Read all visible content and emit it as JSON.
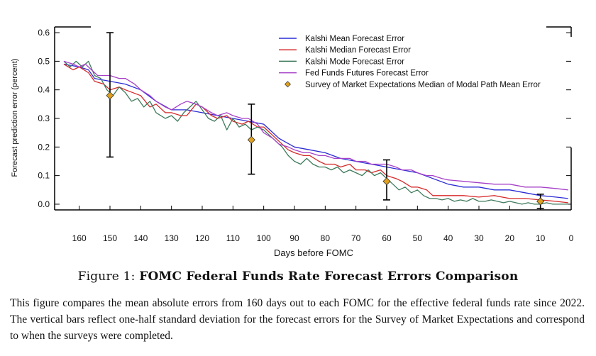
{
  "chart_data": {
    "type": "line",
    "ylabel": "Forecast prediction error (percent)",
    "xlabel": "Days before FOMC",
    "xlim": [
      168,
      0
    ],
    "ylim": [
      -0.02,
      0.62
    ],
    "xticks": [
      160,
      150,
      140,
      130,
      120,
      110,
      100,
      90,
      80,
      70,
      60,
      50,
      40,
      30,
      20,
      10,
      0
    ],
    "yticks": [
      0.0,
      0.1,
      0.2,
      0.3,
      0.4,
      0.5,
      0.6
    ],
    "ytick_labels": [
      "0.0",
      "0.1",
      "0.2",
      "0.3",
      "0.4",
      "0.5",
      "0.6"
    ],
    "legend_position": "top-right",
    "grid": false,
    "series": [
      {
        "name": "Kalshi Mean Forecast Error",
        "color": "#2b2bd6",
        "points": [
          [
            165,
            0.49
          ],
          [
            160,
            0.48
          ],
          [
            157,
            0.47
          ],
          [
            155,
            0.44
          ],
          [
            150,
            0.43
          ],
          [
            145,
            0.42
          ],
          [
            140,
            0.4
          ],
          [
            135,
            0.36
          ],
          [
            130,
            0.33
          ],
          [
            125,
            0.33
          ],
          [
            120,
            0.32
          ],
          [
            115,
            0.31
          ],
          [
            110,
            0.3
          ],
          [
            105,
            0.29
          ],
          [
            100,
            0.28
          ],
          [
            95,
            0.23
          ],
          [
            90,
            0.2
          ],
          [
            85,
            0.19
          ],
          [
            80,
            0.18
          ],
          [
            75,
            0.16
          ],
          [
            70,
            0.15
          ],
          [
            65,
            0.14
          ],
          [
            60,
            0.13
          ],
          [
            55,
            0.12
          ],
          [
            50,
            0.11
          ],
          [
            45,
            0.09
          ],
          [
            40,
            0.07
          ],
          [
            35,
            0.06
          ],
          [
            30,
            0.06
          ],
          [
            25,
            0.05
          ],
          [
            20,
            0.05
          ],
          [
            15,
            0.04
          ],
          [
            10,
            0.03
          ],
          [
            5,
            0.025
          ],
          [
            1,
            0.02
          ]
        ]
      },
      {
        "name": "Kalshi Median Forecast Error",
        "color": "#d62a2a",
        "points": [
          [
            165,
            0.49
          ],
          [
            162,
            0.47
          ],
          [
            160,
            0.48
          ],
          [
            157,
            0.46
          ],
          [
            155,
            0.43
          ],
          [
            152,
            0.42
          ],
          [
            150,
            0.4
          ],
          [
            147,
            0.41
          ],
          [
            145,
            0.4
          ],
          [
            140,
            0.38
          ],
          [
            137,
            0.34
          ],
          [
            135,
            0.35
          ],
          [
            132,
            0.32
          ],
          [
            130,
            0.32
          ],
          [
            127,
            0.31
          ],
          [
            125,
            0.31
          ],
          [
            122,
            0.35
          ],
          [
            120,
            0.34
          ],
          [
            117,
            0.31
          ],
          [
            115,
            0.3
          ],
          [
            112,
            0.31
          ],
          [
            110,
            0.29
          ],
          [
            107,
            0.28
          ],
          [
            105,
            0.29
          ],
          [
            102,
            0.27
          ],
          [
            100,
            0.27
          ],
          [
            97,
            0.24
          ],
          [
            95,
            0.22
          ],
          [
            92,
            0.19
          ],
          [
            90,
            0.18
          ],
          [
            87,
            0.17
          ],
          [
            85,
            0.17
          ],
          [
            82,
            0.15
          ],
          [
            80,
            0.14
          ],
          [
            77,
            0.14
          ],
          [
            75,
            0.13
          ],
          [
            72,
            0.14
          ],
          [
            70,
            0.12
          ],
          [
            67,
            0.12
          ],
          [
            65,
            0.11
          ],
          [
            62,
            0.12
          ],
          [
            60,
            0.1
          ],
          [
            57,
            0.09
          ],
          [
            55,
            0.08
          ],
          [
            52,
            0.06
          ],
          [
            50,
            0.06
          ],
          [
            47,
            0.05
          ],
          [
            45,
            0.03
          ],
          [
            42,
            0.03
          ],
          [
            40,
            0.03
          ],
          [
            35,
            0.03
          ],
          [
            30,
            0.025
          ],
          [
            25,
            0.03
          ],
          [
            20,
            0.02
          ],
          [
            15,
            0.02
          ],
          [
            10,
            0.015
          ],
          [
            5,
            0.01
          ],
          [
            1,
            0.005
          ]
        ]
      },
      {
        "name": "Kalshi Mode Forecast Error",
        "color": "#3e7a5c",
        "points": [
          [
            165,
            0.5
          ],
          [
            163,
            0.48
          ],
          [
            161,
            0.5
          ],
          [
            159,
            0.48
          ],
          [
            157,
            0.5
          ],
          [
            155,
            0.45
          ],
          [
            153,
            0.44
          ],
          [
            151,
            0.4
          ],
          [
            149,
            0.38
          ],
          [
            147,
            0.41
          ],
          [
            145,
            0.39
          ],
          [
            143,
            0.36
          ],
          [
            141,
            0.37
          ],
          [
            139,
            0.34
          ],
          [
            137,
            0.36
          ],
          [
            135,
            0.32
          ],
          [
            132,
            0.3
          ],
          [
            130,
            0.31
          ],
          [
            128,
            0.29
          ],
          [
            126,
            0.32
          ],
          [
            124,
            0.34
          ],
          [
            122,
            0.36
          ],
          [
            120,
            0.33
          ],
          [
            118,
            0.3
          ],
          [
            116,
            0.29
          ],
          [
            114,
            0.31
          ],
          [
            112,
            0.26
          ],
          [
            110,
            0.3
          ],
          [
            108,
            0.27
          ],
          [
            106,
            0.28
          ],
          [
            104,
            0.26
          ],
          [
            102,
            0.27
          ],
          [
            100,
            0.26
          ],
          [
            98,
            0.24
          ],
          [
            96,
            0.22
          ],
          [
            94,
            0.2
          ],
          [
            92,
            0.17
          ],
          [
            90,
            0.15
          ],
          [
            88,
            0.14
          ],
          [
            86,
            0.16
          ],
          [
            84,
            0.14
          ],
          [
            82,
            0.13
          ],
          [
            80,
            0.13
          ],
          [
            78,
            0.12
          ],
          [
            76,
            0.13
          ],
          [
            74,
            0.11
          ],
          [
            72,
            0.12
          ],
          [
            70,
            0.11
          ],
          [
            68,
            0.1
          ],
          [
            66,
            0.12
          ],
          [
            64,
            0.1
          ],
          [
            62,
            0.11
          ],
          [
            60,
            0.09
          ],
          [
            58,
            0.07
          ],
          [
            56,
            0.05
          ],
          [
            54,
            0.06
          ],
          [
            52,
            0.04
          ],
          [
            50,
            0.05
          ],
          [
            48,
            0.03
          ],
          [
            46,
            0.02
          ],
          [
            44,
            0.02
          ],
          [
            42,
            0.015
          ],
          [
            40,
            0.02
          ],
          [
            38,
            0.01
          ],
          [
            36,
            0.015
          ],
          [
            34,
            0.01
          ],
          [
            32,
            0.02
          ],
          [
            30,
            0.01
          ],
          [
            28,
            0.01
          ],
          [
            26,
            0.015
          ],
          [
            24,
            0.01
          ],
          [
            22,
            0.005
          ],
          [
            20,
            0.01
          ],
          [
            18,
            0.005
          ],
          [
            16,
            0.0
          ],
          [
            14,
            0.005
          ],
          [
            12,
            0.0
          ],
          [
            10,
            0.0
          ],
          [
            8,
            0.005
          ],
          [
            6,
            0.0
          ],
          [
            4,
            0.0
          ],
          [
            1,
            0.0
          ]
        ]
      },
      {
        "name": "Fed Funds Futures Forecast Error",
        "color": "#a640c8",
        "points": [
          [
            165,
            0.5
          ],
          [
            162,
            0.49
          ],
          [
            160,
            0.48
          ],
          [
            158,
            0.49
          ],
          [
            156,
            0.47
          ],
          [
            154,
            0.45
          ],
          [
            150,
            0.45
          ],
          [
            147,
            0.44
          ],
          [
            145,
            0.44
          ],
          [
            142,
            0.42
          ],
          [
            140,
            0.4
          ],
          [
            137,
            0.38
          ],
          [
            135,
            0.36
          ],
          [
            132,
            0.34
          ],
          [
            130,
            0.33
          ],
          [
            127,
            0.35
          ],
          [
            125,
            0.36
          ],
          [
            122,
            0.35
          ],
          [
            120,
            0.34
          ],
          [
            117,
            0.32
          ],
          [
            115,
            0.31
          ],
          [
            112,
            0.32
          ],
          [
            110,
            0.31
          ],
          [
            107,
            0.3
          ],
          [
            105,
            0.3
          ],
          [
            102,
            0.28
          ],
          [
            100,
            0.25
          ],
          [
            97,
            0.23
          ],
          [
            95,
            0.21
          ],
          [
            92,
            0.2
          ],
          [
            90,
            0.19
          ],
          [
            87,
            0.18
          ],
          [
            85,
            0.18
          ],
          [
            82,
            0.17
          ],
          [
            80,
            0.17
          ],
          [
            77,
            0.16
          ],
          [
            75,
            0.16
          ],
          [
            72,
            0.16
          ],
          [
            70,
            0.15
          ],
          [
            67,
            0.15
          ],
          [
            65,
            0.14
          ],
          [
            62,
            0.14
          ],
          [
            60,
            0.14
          ],
          [
            57,
            0.13
          ],
          [
            55,
            0.12
          ],
          [
            52,
            0.12
          ],
          [
            50,
            0.11
          ],
          [
            47,
            0.1
          ],
          [
            45,
            0.1
          ],
          [
            42,
            0.09
          ],
          [
            40,
            0.085
          ],
          [
            35,
            0.08
          ],
          [
            30,
            0.075
          ],
          [
            25,
            0.07
          ],
          [
            20,
            0.07
          ],
          [
            15,
            0.06
          ],
          [
            10,
            0.06
          ],
          [
            5,
            0.055
          ],
          [
            1,
            0.05
          ]
        ]
      }
    ],
    "survey": {
      "name": "Survey of Market Expectations Median of Modal Path Mean Error",
      "color": "#e0a020",
      "points": [
        {
          "x": 150,
          "y": 0.38,
          "lo": 0.165,
          "hi": 0.6
        },
        {
          "x": 104,
          "y": 0.225,
          "lo": 0.105,
          "hi": 0.35
        },
        {
          "x": 60,
          "y": 0.08,
          "lo": 0.015,
          "hi": 0.155
        },
        {
          "x": 10,
          "y": 0.01,
          "lo": -0.015,
          "hi": 0.035
        }
      ]
    }
  },
  "caption": {
    "prefix": "Figure 1:",
    "title": "FOMC Federal Funds Rate Forecast Errors Comparison"
  },
  "description": "This figure compares the mean absolute errors from 160 days out to each FOMC for the effective federal funds rate since 2022. The vertical bars reflect one-half standard deviation for the forecast errors for the Survey of Market Expectations and correspond to when the surveys were completed."
}
